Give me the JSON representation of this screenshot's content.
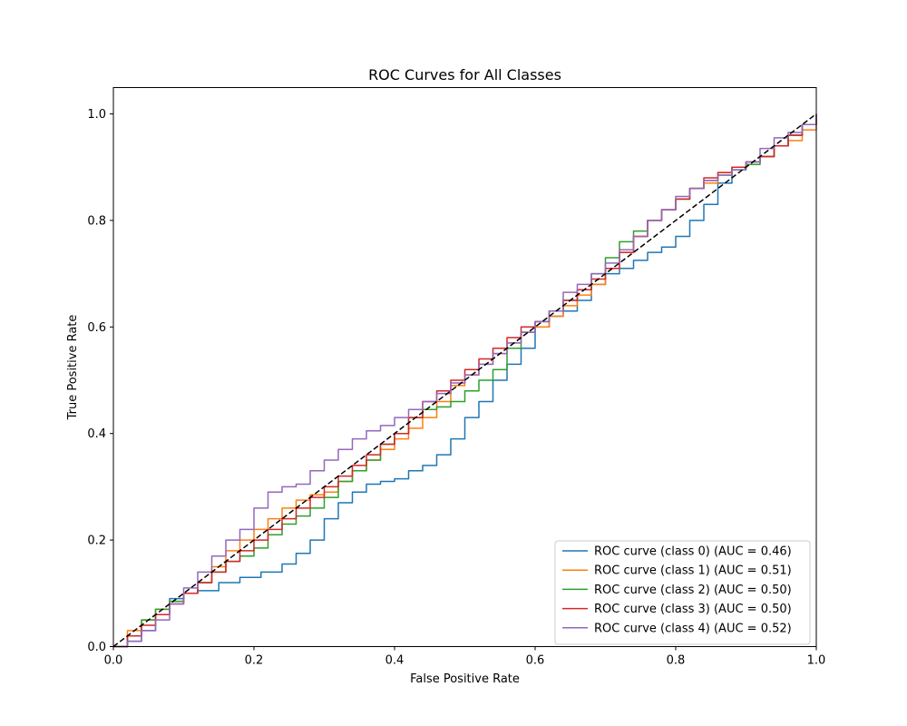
{
  "chart_data": {
    "type": "line",
    "title": "ROC Curves for All Classes",
    "xlabel": "False Positive Rate",
    "ylabel": "True Positive Rate",
    "xlim": [
      0,
      1
    ],
    "ylim": [
      0,
      1.05
    ],
    "xticks": [
      "0.0",
      "0.2",
      "0.4",
      "0.6",
      "0.8",
      "1.0"
    ],
    "yticks": [
      "0.0",
      "0.2",
      "0.4",
      "0.6",
      "0.8",
      "1.0"
    ],
    "grid": false,
    "legend_position": "lower-right",
    "series": [
      {
        "name": "ROC curve (class 0) (AUC = 0.46)",
        "color": "#1f77b4",
        "x": [
          0,
          0.02,
          0.04,
          0.06,
          0.08,
          0.1,
          0.12,
          0.15,
          0.18,
          0.21,
          0.24,
          0.26,
          0.28,
          0.3,
          0.32,
          0.34,
          0.36,
          0.38,
          0.4,
          0.42,
          0.44,
          0.46,
          0.48,
          0.5,
          0.52,
          0.54,
          0.56,
          0.58,
          0.6,
          0.62,
          0.64,
          0.66,
          0.68,
          0.7,
          0.72,
          0.74,
          0.76,
          0.78,
          0.8,
          0.82,
          0.84,
          0.86,
          0.88,
          0.9,
          0.92,
          0.94,
          0.96,
          0.98,
          1.0
        ],
        "y": [
          0,
          0.01,
          0.03,
          0.06,
          0.09,
          0.1,
          0.105,
          0.12,
          0.13,
          0.14,
          0.155,
          0.175,
          0.2,
          0.24,
          0.27,
          0.29,
          0.305,
          0.31,
          0.315,
          0.33,
          0.34,
          0.36,
          0.39,
          0.43,
          0.46,
          0.5,
          0.53,
          0.56,
          0.6,
          0.62,
          0.63,
          0.65,
          0.68,
          0.7,
          0.71,
          0.725,
          0.74,
          0.75,
          0.77,
          0.8,
          0.83,
          0.87,
          0.9,
          0.91,
          0.92,
          0.94,
          0.96,
          0.98,
          1.0
        ]
      },
      {
        "name": "ROC curve (class 1) (AUC = 0.51)",
        "color": "#ff7f0e",
        "x": [
          0,
          0.02,
          0.04,
          0.06,
          0.08,
          0.1,
          0.12,
          0.14,
          0.16,
          0.18,
          0.2,
          0.22,
          0.24,
          0.26,
          0.28,
          0.3,
          0.32,
          0.34,
          0.36,
          0.38,
          0.4,
          0.42,
          0.44,
          0.46,
          0.48,
          0.5,
          0.52,
          0.54,
          0.56,
          0.58,
          0.6,
          0.62,
          0.64,
          0.66,
          0.68,
          0.7,
          0.72,
          0.74,
          0.76,
          0.78,
          0.8,
          0.82,
          0.84,
          0.86,
          0.88,
          0.9,
          0.92,
          0.94,
          0.96,
          0.98,
          1.0
        ],
        "y": [
          0,
          0.03,
          0.05,
          0.07,
          0.085,
          0.1,
          0.12,
          0.15,
          0.18,
          0.2,
          0.22,
          0.24,
          0.26,
          0.275,
          0.285,
          0.29,
          0.31,
          0.33,
          0.35,
          0.37,
          0.39,
          0.41,
          0.43,
          0.46,
          0.49,
          0.51,
          0.53,
          0.55,
          0.57,
          0.59,
          0.6,
          0.62,
          0.64,
          0.66,
          0.68,
          0.71,
          0.74,
          0.77,
          0.8,
          0.82,
          0.84,
          0.86,
          0.87,
          0.89,
          0.9,
          0.91,
          0.92,
          0.94,
          0.95,
          0.97,
          0.99
        ]
      },
      {
        "name": "ROC curve (class 2) (AUC = 0.50)",
        "color": "#2ca02c",
        "x": [
          0,
          0.02,
          0.04,
          0.06,
          0.08,
          0.1,
          0.12,
          0.14,
          0.16,
          0.18,
          0.2,
          0.22,
          0.24,
          0.26,
          0.28,
          0.3,
          0.32,
          0.34,
          0.36,
          0.38,
          0.4,
          0.42,
          0.44,
          0.46,
          0.48,
          0.5,
          0.52,
          0.54,
          0.56,
          0.58,
          0.6,
          0.62,
          0.64,
          0.66,
          0.68,
          0.7,
          0.72,
          0.74,
          0.76,
          0.78,
          0.8,
          0.82,
          0.84,
          0.86,
          0.88,
          0.9,
          0.92,
          0.94,
          0.96,
          0.98,
          1.0
        ],
        "y": [
          0,
          0.02,
          0.05,
          0.07,
          0.085,
          0.1,
          0.12,
          0.14,
          0.16,
          0.17,
          0.185,
          0.21,
          0.23,
          0.245,
          0.26,
          0.28,
          0.31,
          0.33,
          0.35,
          0.38,
          0.4,
          0.43,
          0.445,
          0.45,
          0.46,
          0.48,
          0.5,
          0.52,
          0.56,
          0.59,
          0.61,
          0.63,
          0.65,
          0.67,
          0.7,
          0.73,
          0.76,
          0.78,
          0.8,
          0.82,
          0.84,
          0.86,
          0.875,
          0.885,
          0.895,
          0.905,
          0.92,
          0.94,
          0.96,
          0.98,
          1.0
        ]
      },
      {
        "name": "ROC curve (class 3) (AUC = 0.50)",
        "color": "#d62728",
        "x": [
          0,
          0.02,
          0.04,
          0.06,
          0.08,
          0.1,
          0.12,
          0.14,
          0.16,
          0.18,
          0.2,
          0.22,
          0.24,
          0.26,
          0.28,
          0.3,
          0.32,
          0.34,
          0.36,
          0.38,
          0.4,
          0.42,
          0.44,
          0.46,
          0.48,
          0.5,
          0.52,
          0.54,
          0.56,
          0.58,
          0.6,
          0.62,
          0.64,
          0.66,
          0.68,
          0.7,
          0.72,
          0.74,
          0.76,
          0.78,
          0.8,
          0.82,
          0.84,
          0.86,
          0.88,
          0.9,
          0.92,
          0.94,
          0.96,
          0.98,
          1.0
        ],
        "y": [
          0,
          0.02,
          0.04,
          0.06,
          0.08,
          0.1,
          0.12,
          0.14,
          0.16,
          0.18,
          0.2,
          0.22,
          0.24,
          0.26,
          0.28,
          0.3,
          0.32,
          0.34,
          0.36,
          0.38,
          0.4,
          0.43,
          0.46,
          0.48,
          0.5,
          0.52,
          0.54,
          0.56,
          0.58,
          0.6,
          0.61,
          0.63,
          0.65,
          0.67,
          0.69,
          0.71,
          0.74,
          0.77,
          0.8,
          0.82,
          0.84,
          0.86,
          0.88,
          0.89,
          0.9,
          0.91,
          0.92,
          0.94,
          0.96,
          0.98,
          1.0
        ]
      },
      {
        "name": "ROC curve (class 4) (AUC = 0.52)",
        "color": "#9467bd",
        "x": [
          0,
          0.02,
          0.04,
          0.06,
          0.08,
          0.1,
          0.12,
          0.14,
          0.16,
          0.18,
          0.2,
          0.22,
          0.24,
          0.26,
          0.28,
          0.3,
          0.32,
          0.34,
          0.36,
          0.38,
          0.4,
          0.42,
          0.44,
          0.46,
          0.48,
          0.5,
          0.52,
          0.54,
          0.56,
          0.58,
          0.6,
          0.62,
          0.64,
          0.66,
          0.68,
          0.7,
          0.72,
          0.74,
          0.76,
          0.78,
          0.8,
          0.82,
          0.84,
          0.86,
          0.88,
          0.9,
          0.92,
          0.94,
          0.96,
          0.98,
          1.0
        ],
        "y": [
          0,
          0.01,
          0.03,
          0.05,
          0.08,
          0.11,
          0.14,
          0.17,
          0.2,
          0.22,
          0.26,
          0.29,
          0.3,
          0.305,
          0.33,
          0.35,
          0.37,
          0.39,
          0.405,
          0.415,
          0.43,
          0.445,
          0.46,
          0.475,
          0.495,
          0.51,
          0.53,
          0.55,
          0.57,
          0.59,
          0.61,
          0.63,
          0.665,
          0.68,
          0.7,
          0.72,
          0.745,
          0.77,
          0.8,
          0.82,
          0.845,
          0.86,
          0.875,
          0.885,
          0.895,
          0.91,
          0.935,
          0.955,
          0.965,
          0.98,
          1.0
        ]
      }
    ],
    "reference_line": {
      "x": [
        0,
        1
      ],
      "y": [
        0,
        1
      ],
      "color": "#000000",
      "style": "dashed"
    }
  }
}
